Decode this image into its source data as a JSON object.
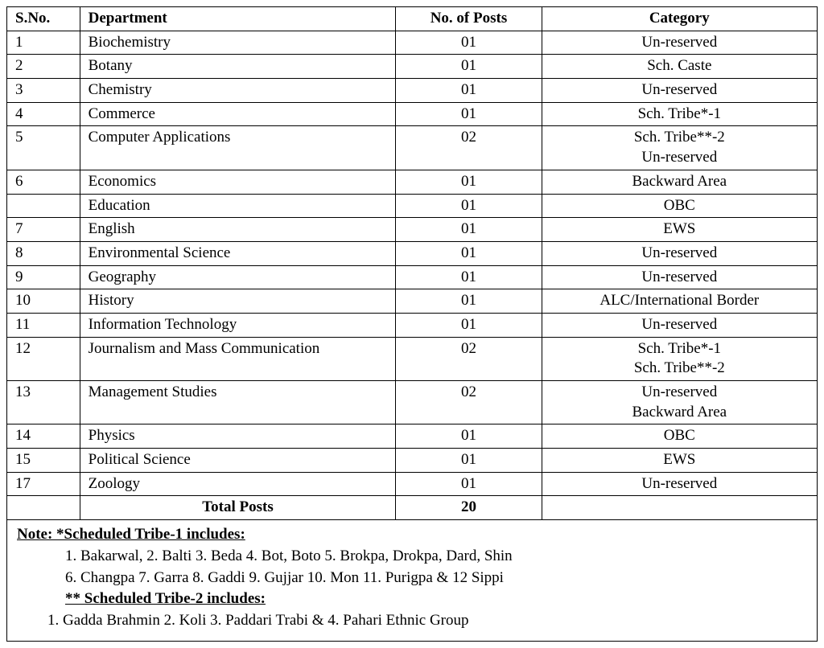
{
  "table": {
    "columns": [
      "S.No.",
      "Department",
      "No. of  Posts",
      "Category"
    ],
    "col_align": [
      "left",
      "left",
      "center",
      "center"
    ],
    "rows": [
      {
        "sno": "1",
        "dept": "Biochemistry",
        "posts": "01",
        "category": [
          "Un-reserved"
        ]
      },
      {
        "sno": "2",
        "dept": "Botany",
        "posts": "01",
        "category": [
          "Sch. Caste"
        ]
      },
      {
        "sno": "3",
        "dept": "Chemistry",
        "posts": "01",
        "category": [
          "Un-reserved"
        ]
      },
      {
        "sno": "4",
        "dept": "Commerce",
        "posts": "01",
        "category": [
          "Sch. Tribe*-1"
        ]
      },
      {
        "sno": "5",
        "dept": "Computer Applications",
        "posts": "02",
        "category": [
          "Sch. Tribe**-2",
          "Un-reserved"
        ]
      },
      {
        "sno": "6",
        "dept": "Economics",
        "posts": "01",
        "category": [
          "Backward Area"
        ]
      },
      {
        "sno": "",
        "dept": "Education",
        "posts": "01",
        "category": [
          "OBC"
        ]
      },
      {
        "sno": "7",
        "dept": "English",
        "posts": "01",
        "category": [
          "EWS"
        ]
      },
      {
        "sno": "8",
        "dept": "Environmental Science",
        "posts": "01",
        "category": [
          "Un-reserved"
        ]
      },
      {
        "sno": "9",
        "dept": "Geography",
        "posts": "01",
        "category": [
          "Un-reserved"
        ]
      },
      {
        "sno": "10",
        "dept": "History",
        "posts": "01",
        "category": [
          "ALC/International Border"
        ]
      },
      {
        "sno": "11",
        "dept": "Information Technology",
        "posts": "01",
        "category": [
          "Un-reserved"
        ]
      },
      {
        "sno": "12",
        "dept": "Journalism and Mass Communication",
        "posts": "02",
        "category": [
          "Sch. Tribe*-1",
          "Sch. Tribe**-2"
        ]
      },
      {
        "sno": "13",
        "dept": "Management Studies",
        "posts": "02",
        "category": [
          "Un-reserved",
          "Backward Area"
        ]
      },
      {
        "sno": "14",
        "dept": "Physics",
        "posts": "01",
        "category": [
          "OBC"
        ]
      },
      {
        "sno": "15",
        "dept": "Political Science",
        "posts": "01",
        "category": [
          "EWS"
        ]
      },
      {
        "sno": "17",
        "dept": "Zoology",
        "posts": "01",
        "category": [
          "Un-reserved"
        ]
      }
    ],
    "total_label": "Total Posts",
    "total_value": "20",
    "border_color": "#000000",
    "background_color": "#ffffff",
    "font_family": "Times New Roman",
    "header_fontsize": 19,
    "body_fontsize": 19
  },
  "note": {
    "heading1": "Note: *Scheduled Tribe-1 includes:",
    "tribe1_line1": "1.   Bakarwal,     2. Balti     3. Beda        4. Bot, Boto     5. Brokpa, Drokpa, Dard, Shin",
    "tribe1_line2": "6.  Changpa      7. Garra    8.   Gaddi     9. Gujjar    10.    Mon     11.   Purigpa  & 12 Sippi",
    "heading2": "** Scheduled Tribe-2 includes:",
    "tribe2_line1": "1.    Gadda Brahmin      2.  Koli     3.  Paddari Trabi   & 4.    Pahari Ethnic Group"
  }
}
